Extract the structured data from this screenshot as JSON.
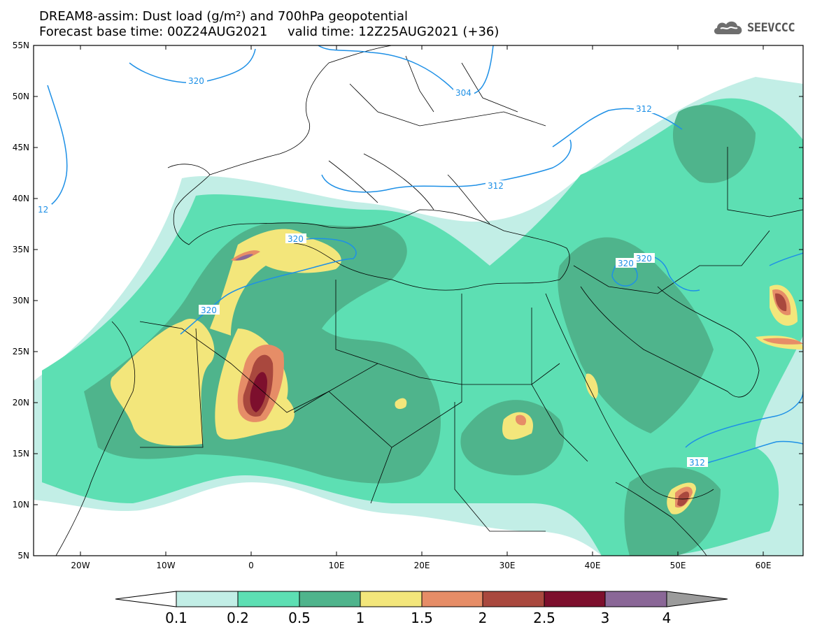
{
  "header": {
    "title_line1": "DREAM8-assim: Dust load (g/m²) and 700hPa geopotential",
    "title_line2": "Forecast base time: 00Z24AUG2021     valid time: 12Z25AUG2021 (+36)"
  },
  "logo": {
    "icon": "cloud-logo-icon",
    "text": "SEEVCCC"
  },
  "map": {
    "lon_range": [
      -25,
      65
    ],
    "lat_range": [
      5,
      55
    ],
    "lat_ticks": [
      "55N",
      "50N",
      "45N",
      "40N",
      "35N",
      "30N",
      "25N",
      "20N",
      "15N",
      "10N",
      "5N"
    ],
    "lon_ticks": [
      "20W",
      "10W",
      "0",
      "10E",
      "20E",
      "30E",
      "40E",
      "50E",
      "60E"
    ]
  },
  "contours": {
    "color": "#1e90e6",
    "labels": [
      "320",
      "304",
      "312",
      "12",
      "320",
      "320",
      "320",
      "320",
      "312",
      "312"
    ]
  },
  "colorbar": {
    "colors": [
      "#c2eee6",
      "#5ddfb3",
      "#4fb48c",
      "#f3e67b",
      "#e68d67",
      "#a9483e",
      "#7d0f2d",
      "#8a6797"
    ],
    "low_arrow_color": "#ffffff",
    "high_arrow_color": "#9b9b9b",
    "labels": [
      "0.1",
      "0.2",
      "0.5",
      "1",
      "1.5",
      "2",
      "2.5",
      "3",
      "4"
    ]
  }
}
